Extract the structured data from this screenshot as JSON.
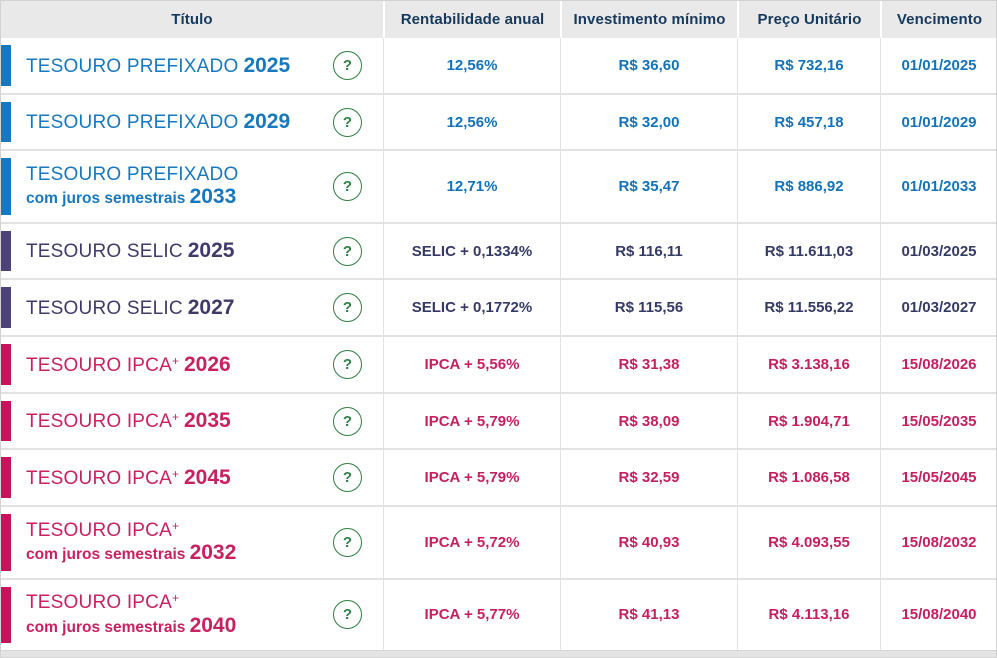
{
  "header": {
    "columns": [
      {
        "id": "titulo",
        "label": "Título"
      },
      {
        "id": "rentabilidade",
        "label": "Rentabilidade anual"
      },
      {
        "id": "investimento",
        "label": "Investimento mínimo"
      },
      {
        "id": "preco",
        "label": "Preço Unitário"
      },
      {
        "id": "vencimento",
        "label": "Vencimento"
      }
    ]
  },
  "help_icon": {
    "glyph": "?"
  },
  "bonds": [
    {
      "theme": "prefixado",
      "name": "TESOURO PREFIXADO",
      "sup": "",
      "subtitle": "",
      "year": "2025",
      "rate": "12,56%",
      "min_investment": "R$ 36,60",
      "unit_price": "R$ 732,16",
      "maturity": "01/01/2025"
    },
    {
      "theme": "prefixado",
      "name": "TESOURO PREFIXADO",
      "sup": "",
      "subtitle": "",
      "year": "2029",
      "rate": "12,56%",
      "min_investment": "R$ 32,00",
      "unit_price": "R$ 457,18",
      "maturity": "01/01/2029"
    },
    {
      "theme": "prefixado",
      "name": "TESOURO PREFIXADO",
      "sup": "",
      "subtitle": "com juros semestrais",
      "year": "2033",
      "rate": "12,71%",
      "min_investment": "R$ 35,47",
      "unit_price": "R$ 886,92",
      "maturity": "01/01/2033"
    },
    {
      "theme": "selic",
      "name": "TESOURO SELIC",
      "sup": "",
      "subtitle": "",
      "year": "2025",
      "rate": "SELIC + 0,1334%",
      "min_investment": "R$ 116,11",
      "unit_price": "R$ 11.611,03",
      "maturity": "01/03/2025"
    },
    {
      "theme": "selic",
      "name": "TESOURO SELIC",
      "sup": "",
      "subtitle": "",
      "year": "2027",
      "rate": "SELIC + 0,1772%",
      "min_investment": "R$ 115,56",
      "unit_price": "R$ 11.556,22",
      "maturity": "01/03/2027"
    },
    {
      "theme": "ipca",
      "name": "TESOURO IPCA",
      "sup": "+",
      "subtitle": "",
      "year": "2026",
      "rate": "IPCA + 5,56%",
      "min_investment": "R$ 31,38",
      "unit_price": "R$ 3.138,16",
      "maturity": "15/08/2026"
    },
    {
      "theme": "ipca",
      "name": "TESOURO IPCA",
      "sup": "+",
      "subtitle": "",
      "year": "2035",
      "rate": "IPCA + 5,79%",
      "min_investment": "R$ 38,09",
      "unit_price": "R$ 1.904,71",
      "maturity": "15/05/2035"
    },
    {
      "theme": "ipca",
      "name": "TESOURO IPCA",
      "sup": "+",
      "subtitle": "",
      "year": "2045",
      "rate": "IPCA + 5,79%",
      "min_investment": "R$ 32,59",
      "unit_price": "R$ 1.086,58",
      "maturity": "15/05/2045"
    },
    {
      "theme": "ipca",
      "name": "TESOURO IPCA",
      "sup": "+",
      "subtitle": "com juros semestrais",
      "year": "2032",
      "rate": "IPCA + 5,72%",
      "min_investment": "R$ 40,93",
      "unit_price": "R$ 4.093,55",
      "maturity": "15/08/2032"
    },
    {
      "theme": "ipca",
      "name": "TESOURO IPCA",
      "sup": "+",
      "subtitle": "com juros semestrais",
      "year": "2040",
      "rate": "IPCA + 5,77%",
      "min_investment": "R$ 41,13",
      "unit_price": "R$ 4.113,16",
      "maturity": "15/08/2040"
    }
  ],
  "colors": {
    "prefixado": "#1878be",
    "selic": "#4c4277",
    "ipca": "#c4155c",
    "help_green": "#2f7e43",
    "header_bg": "#e9e9e9",
    "header_text": "#16395c",
    "row_border": "#e2e2e2"
  }
}
